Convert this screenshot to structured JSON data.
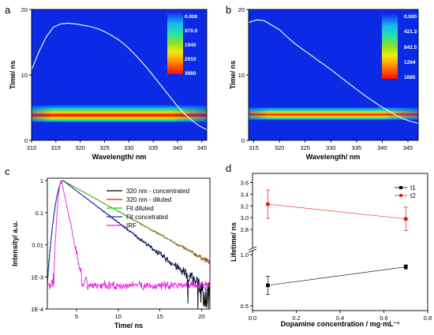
{
  "chart_data": [
    {
      "id": "a",
      "panel_label": "a",
      "type": "heatmap",
      "xlabel": "Wavelength/ nm",
      "ylabel": "Time/ ns",
      "xlim": [
        310,
        346
      ],
      "ylim": [
        0,
        20
      ],
      "xticks": [
        310,
        315,
        320,
        325,
        330,
        335,
        340,
        345
      ],
      "yticks": [
        0,
        10,
        20
      ],
      "colorbar_labels": [
        "0.000",
        "970.0",
        "1940",
        "2910",
        "3880"
      ],
      "band_peak_time": 3.5,
      "band_peak_wavelength": 326,
      "overlay_curve": {
        "x": [
          310,
          311.5,
          313,
          314.5,
          316,
          317.5,
          319,
          320.5,
          322,
          323.5,
          325,
          326.5,
          328,
          329.5,
          331,
          332.5,
          334,
          335.5,
          337,
          338.5,
          340,
          341.5,
          343,
          344.5,
          346
        ],
        "y": [
          10.8,
          13.5,
          15.8,
          17.3,
          17.8,
          17.9,
          17.8,
          17.6,
          17.4,
          17.1,
          16.6,
          16.0,
          15.3,
          14.4,
          13.3,
          12.1,
          10.8,
          9.4,
          8.0,
          6.6,
          5.2,
          4.0,
          3.0,
          2.2,
          1.6
        ]
      }
    },
    {
      "id": "b",
      "panel_label": "b",
      "type": "heatmap",
      "xlabel": "Wavelength/ nm",
      "ylabel": "Time/ ns",
      "xlim": [
        314,
        347
      ],
      "ylim": [
        0,
        20
      ],
      "xticks": [
        315,
        320,
        325,
        330,
        335,
        340,
        345
      ],
      "yticks": [
        0,
        10,
        20
      ],
      "colorbar_labels": [
        "0.000",
        "421.3",
        "842.5",
        "1264",
        "1685"
      ],
      "band_peak_time": 3.5,
      "band_peak_wavelength": 322,
      "overlay_curve": {
        "x": [
          314,
          315.5,
          317,
          318.5,
          320,
          321.5,
          323,
          324.5,
          326,
          327.5,
          329,
          330.5,
          332,
          333.5,
          335,
          336.5,
          338,
          339.5,
          341,
          342.5,
          344,
          345.5,
          347
        ],
        "y": [
          18.0,
          18.4,
          18.3,
          17.6,
          16.9,
          15.8,
          14.8,
          13.9,
          13.1,
          12.2,
          11.4,
          10.5,
          9.6,
          8.7,
          7.8,
          6.9,
          6.1,
          5.3,
          4.6,
          3.9,
          3.3,
          2.9,
          2.6
        ]
      }
    },
    {
      "id": "c",
      "panel_label": "c",
      "type": "line",
      "xlabel": "Time/ ns",
      "ylabel": "Intensity/ a.u.",
      "xlim": [
        1.5,
        21
      ],
      "ylim": [
        0.0001,
        1.2
      ],
      "yscale": "log",
      "xticks": [
        5,
        10,
        15,
        20
      ],
      "yticks": [
        {
          "value": 1,
          "label": "1"
        },
        {
          "value": 0.1,
          "label": "0.1"
        },
        {
          "value": 0.01,
          "label": "0.01"
        },
        {
          "value": 0.001,
          "label": "1E-3"
        },
        {
          "value": 0.0001,
          "label": "1E-4"
        }
      ],
      "legend_position": "top-right",
      "series": [
        {
          "name": "320 nm - concentrated",
          "color": "#000000",
          "model": {
            "t0": 3.4,
            "tau": 2.2,
            "rise": 0.5,
            "noise": 0.9,
            "floor": 0.0001
          }
        },
        {
          "name": "320 nm - diluted",
          "color": "#e8160e",
          "model": {
            "t0": 3.4,
            "tau": 3.0,
            "rise": 0.5,
            "noise": 0.7,
            "floor": 0.0001
          }
        },
        {
          "name": "Fit diluted",
          "color": "#1fd11f",
          "model": {
            "t0": 3.4,
            "tau": 3.0,
            "rise": 0.5,
            "noise": 0,
            "floor": 0.0001
          }
        },
        {
          "name": "Fit concetrated",
          "color": "#1530d8",
          "model": {
            "t0": 3.4,
            "tau": 2.2,
            "rise": 0.5,
            "noise": 0,
            "floor": 0.0001
          }
        },
        {
          "name": "IRF",
          "color": "#e81ee0",
          "model": {
            "t0": 3.2,
            "tau": 0.35,
            "rise": 0.25,
            "noise": 1.6,
            "floor": 0.0005
          }
        }
      ]
    },
    {
      "id": "d",
      "panel_label": "d",
      "type": "scatter",
      "xlabel": "Dopamine concentration / mg·mL⁻¹",
      "ylabel": "Lifetime/ ns",
      "xlim": [
        0,
        0.8
      ],
      "xticks": [
        0.0,
        0.2,
        0.4,
        0.6,
        0.8
      ],
      "y_axis_break": true,
      "ylim_upper": [
        2.6,
        3.7
      ],
      "ylim_lower": [
        0.5,
        1.0
      ],
      "yticks_upper": [
        2.8,
        3.0,
        3.2,
        3.4,
        3.6
      ],
      "yticks_lower": [
        0.5,
        1.0
      ],
      "legend_position": "top-right",
      "series": [
        {
          "name": "t1",
          "color": "#000000",
          "marker": "square",
          "x": [
            0.07,
            0.7
          ],
          "y": [
            0.7,
            0.88
          ],
          "yerr": [
            0.09,
            0.02
          ],
          "axis": "lower"
        },
        {
          "name": "t2",
          "color": "#e8160e",
          "marker": "circle",
          "x": [
            0.07,
            0.7
          ],
          "y": [
            3.23,
            2.98
          ],
          "yerr": [
            0.24,
            0.2
          ],
          "axis": "upper"
        }
      ]
    }
  ]
}
